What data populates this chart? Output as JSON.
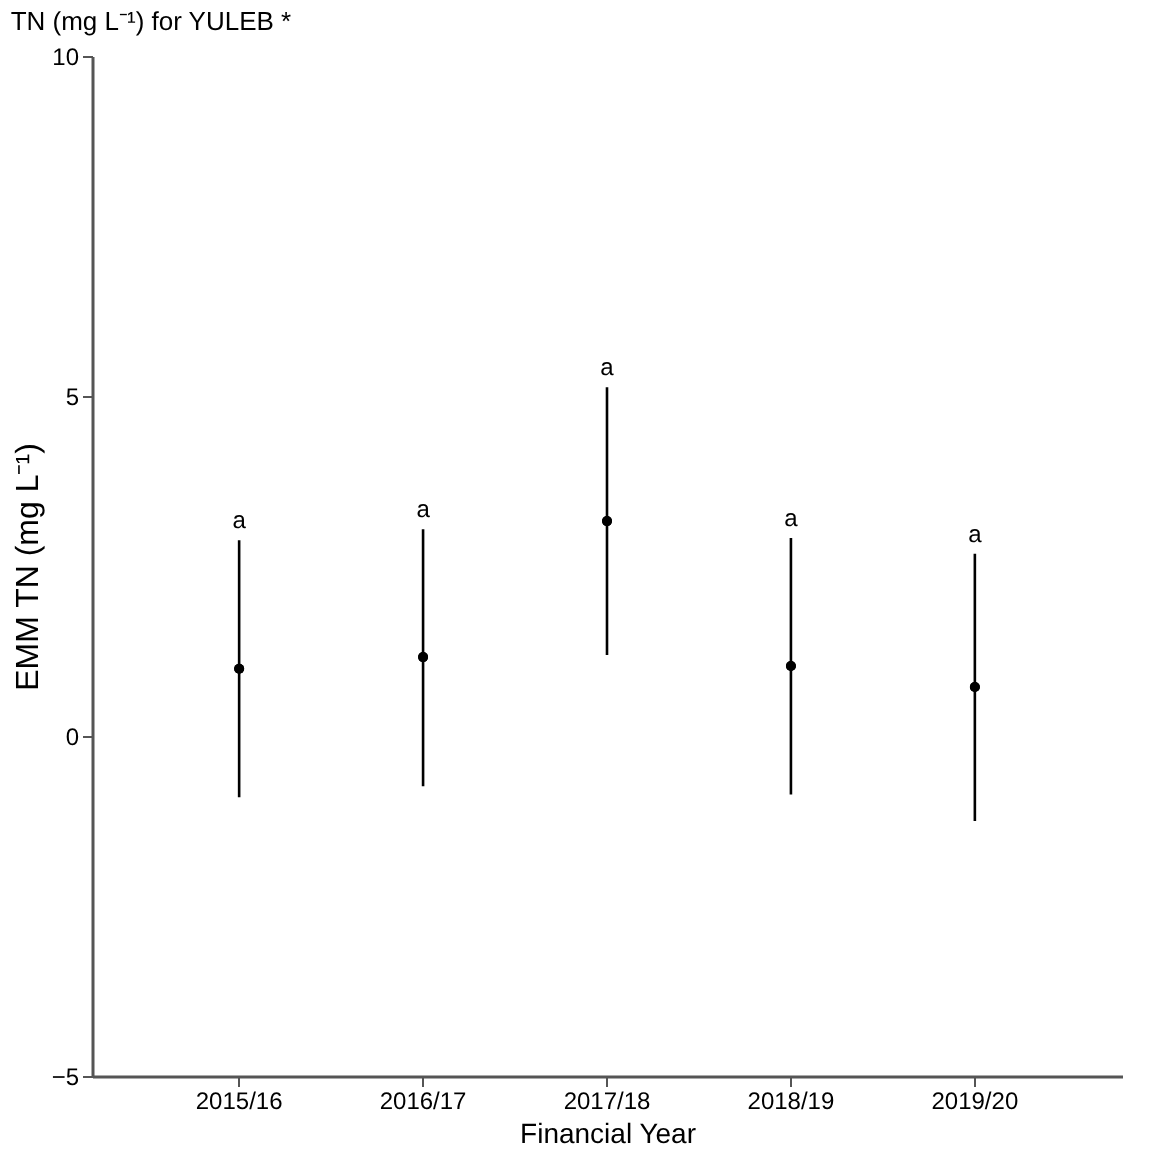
{
  "chart_data": {
    "type": "scatter",
    "title": "TN (mg L⁻¹) for YULEB *",
    "xlabel": "Financial Year",
    "ylabel": "EMM TN (mg L⁻¹)",
    "categories": [
      "2015/16",
      "2016/17",
      "2017/18",
      "2018/19",
      "2019/20"
    ],
    "series": [
      {
        "color": "#000000",
        "values": [
          0.99,
          1.16,
          3.16,
          1.03,
          0.72
        ],
        "errors": [
          [
            -0.9,
            2.88
          ],
          [
            -0.74,
            3.04
          ],
          [
            1.19,
            5.13
          ],
          [
            -0.86,
            2.91
          ],
          [
            -1.25,
            2.68
          ]
        ]
      }
    ],
    "ylim": [
      -5,
      10
    ],
    "yticks": [
      -5,
      0,
      5,
      10
    ],
    "grid": false,
    "marker": "circle",
    "annotations": [
      "a",
      "a",
      "a",
      "a",
      "a"
    ]
  }
}
